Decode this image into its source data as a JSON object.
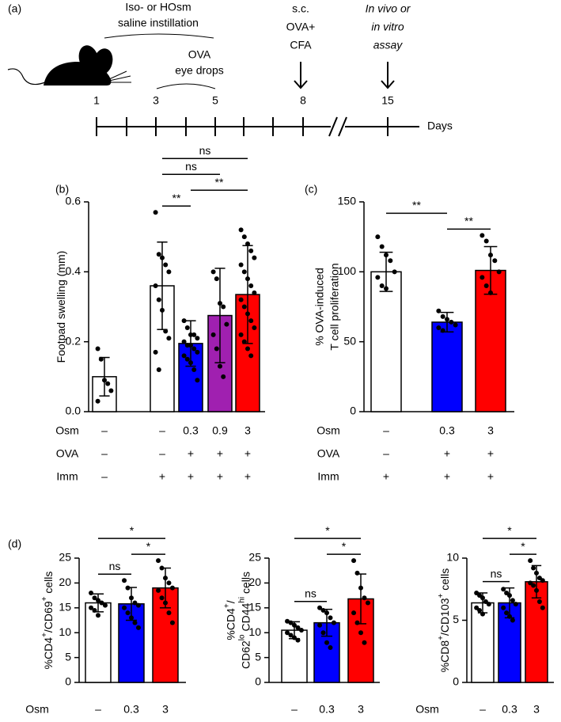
{
  "timeline": {
    "panel": "(a)",
    "top_note": [
      "Iso- or HOsm",
      "saline instillation"
    ],
    "eye_note": [
      "OVA",
      "eye drops"
    ],
    "immunization": [
      "s.c.",
      "OVA+",
      "CFA"
    ],
    "assay": [
      "In vivo or",
      "in vitro",
      "assay"
    ],
    "days": [
      1,
      3,
      5,
      8,
      15
    ],
    "axis_label": "Days"
  },
  "chart_data": [
    {
      "type": "bar",
      "panel": "(b)",
      "ylabel": [
        [
          {
            "t": "Footpad swelling (mm)"
          }
        ]
      ],
      "values": [
        0.1,
        0.36,
        0.195,
        0.275,
        0.335
      ],
      "errors": [
        0.055,
        0.125,
        0.065,
        0.135,
        0.14
      ],
      "colors": [
        "#ffffff",
        "#ffffff",
        "#0000ff",
        "#a020b0",
        "#ff0000"
      ],
      "points": [
        [
          0.18,
          0.15,
          0.09,
          0.08,
          0.06,
          0.03
        ],
        [
          0.57,
          0.45,
          0.44,
          0.42,
          0.4,
          0.36,
          0.32,
          0.29,
          0.23,
          0.21,
          0.17,
          0.12
        ],
        [
          0.26,
          0.24,
          0.22,
          0.22,
          0.21,
          0.2,
          0.19,
          0.19,
          0.18,
          0.17,
          0.16,
          0.15,
          0.14,
          0.12,
          0.09
        ],
        [
          0.4,
          0.38,
          0.31,
          0.3,
          0.25,
          0.22,
          0.18,
          0.13,
          0.1
        ],
        [
          0.52,
          0.5,
          0.48,
          0.46,
          0.44,
          0.42,
          0.4,
          0.38,
          0.36,
          0.34,
          0.32,
          0.3,
          0.28,
          0.26,
          0.24,
          0.22,
          0.2,
          0.18,
          0.16
        ]
      ],
      "ylim": [
        0,
        0.6
      ],
      "yticks": [
        {
          "value": 0,
          "label": "0.0"
        },
        0.2,
        0.4,
        0.6
      ],
      "comparisons": [
        {
          "label": "**",
          "bars": [
            1,
            2
          ]
        },
        {
          "label": "**",
          "bars": [
            2,
            4
          ]
        },
        {
          "label": "ns",
          "bars": [
            1,
            3
          ]
        },
        {
          "label": "ns",
          "bars": [
            1,
            4
          ]
        }
      ],
      "conditions": [
        {
          "name": "Osm",
          "values": [
            "–",
            "–",
            "0.3",
            "0.9",
            "3"
          ]
        },
        {
          "name": "OVA",
          "values": [
            "–",
            "–",
            "+",
            "+",
            "+"
          ]
        },
        {
          "name": "Imm",
          "values": [
            "–",
            "+",
            "+",
            "+",
            "+"
          ]
        }
      ]
    },
    {
      "type": "bar",
      "panel": "(c)",
      "ylabel": [
        [
          {
            "t": "% OVA-induced"
          }
        ],
        [
          {
            "t": "T cell proliferation"
          }
        ]
      ],
      "values": [
        100,
        64,
        101
      ],
      "errors": [
        14,
        7,
        17
      ],
      "colors": [
        "#ffffff",
        "#0000ff",
        "#ff0000"
      ],
      "points": [
        [
          125,
          118,
          112,
          108,
          100,
          96,
          90,
          88
        ],
        [
          72,
          68,
          66,
          64,
          62,
          60,
          58
        ],
        [
          126,
          122,
          112,
          108,
          100,
          96,
          90,
          85
        ]
      ],
      "ylim": [
        0,
        150
      ],
      "yticks": [
        0,
        50,
        100,
        150
      ],
      "comparisons": [
        {
          "label": "**",
          "bars": [
            1,
            2
          ]
        },
        {
          "label": "**",
          "bars": [
            0,
            1
          ]
        }
      ],
      "conditions": [
        {
          "name": "Osm",
          "values": [
            "–",
            "0.3",
            "3"
          ]
        },
        {
          "name": "OVA",
          "values": [
            "–",
            "+",
            "+"
          ]
        },
        {
          "name": "Imm",
          "values": [
            "+",
            "+",
            "+"
          ]
        }
      ]
    },
    {
      "type": "bar",
      "panel": "(d)",
      "ylabel": [
        [
          {
            "t": "%CD4"
          },
          {
            "sup": "+"
          },
          {
            "t": "/CD69"
          },
          {
            "sup": "+"
          },
          {
            "t": " cells"
          }
        ]
      ],
      "values": [
        16,
        15.8,
        19
      ],
      "errors": [
        1.8,
        3.3,
        4
      ],
      "colors": [
        "#ffffff",
        "#0000ff",
        "#ff0000"
      ],
      "points": [
        [
          18,
          17,
          16.5,
          16,
          15.5,
          15,
          14.5,
          13.5
        ],
        [
          20.5,
          19,
          17,
          16,
          15.5,
          15,
          14,
          13,
          12,
          11
        ],
        [
          24.5,
          23,
          21,
          20,
          19,
          18.5,
          17,
          16,
          14,
          12
        ]
      ],
      "ylim": [
        0,
        25
      ],
      "yticks": [
        0,
        5,
        10,
        15,
        20,
        25
      ],
      "comparisons": [
        {
          "label": "ns",
          "bars": [
            0,
            1
          ]
        },
        {
          "label": "*",
          "bars": [
            1,
            2
          ]
        },
        {
          "label": "*",
          "bars": [
            0,
            2
          ]
        }
      ],
      "conditions": [
        {
          "name": "Osm",
          "values": [
            "–",
            "0.3",
            "3"
          ]
        }
      ]
    },
    {
      "type": "bar",
      "ylabel": [
        [
          {
            "t": "%CD4"
          },
          {
            "sup": "+"
          },
          {
            "t": "/"
          }
        ],
        [
          {
            "t": "CD62"
          },
          {
            "sup": "lo"
          },
          {
            "t": " CD44"
          },
          {
            "sup": "hi"
          },
          {
            "t": " cells"
          }
        ]
      ],
      "values": [
        10.5,
        12,
        16.8
      ],
      "errors": [
        1.7,
        2.7,
        5
      ],
      "colors": [
        "#ffffff",
        "#0000ff",
        "#ff0000"
      ],
      "points": [
        [
          12.3,
          12,
          11.5,
          11,
          10.5,
          10,
          9.5,
          9,
          8.5
        ],
        [
          15,
          14.5,
          14,
          13,
          12,
          11.5,
          10,
          8,
          7
        ],
        [
          24.5,
          22,
          19,
          17,
          16,
          14,
          12,
          10,
          8
        ]
      ],
      "ylim": [
        0,
        25
      ],
      "yticks": [
        0,
        5,
        10,
        15,
        20,
        25
      ],
      "comparisons": [
        {
          "label": "ns",
          "bars": [
            0,
            1
          ]
        },
        {
          "label": "*",
          "bars": [
            1,
            2
          ]
        },
        {
          "label": "*",
          "bars": [
            0,
            2
          ]
        }
      ],
      "conditions": [
        {
          "values": [
            "–",
            "0.3",
            "3"
          ]
        }
      ]
    },
    {
      "type": "bar",
      "ylabel": [
        [
          {
            "t": "%CD8"
          },
          {
            "sup": "+"
          },
          {
            "t": "/CD103"
          },
          {
            "sup": "+"
          },
          {
            "t": " cells"
          }
        ]
      ],
      "values": [
        6.4,
        6.4,
        8.1
      ],
      "errors": [
        0.8,
        1.2,
        1.3
      ],
      "colors": [
        "#ffffff",
        "#0000ff",
        "#ff0000"
      ],
      "points": [
        [
          7.2,
          7,
          6.8,
          6.5,
          6.3,
          6,
          5.8,
          5.5
        ],
        [
          7.5,
          7.2,
          7,
          6.6,
          6.3,
          6,
          5.6,
          5.3,
          5
        ],
        [
          9.8,
          9.2,
          8.8,
          8.4,
          8.2,
          8,
          7.8,
          7.4,
          6.5,
          6
        ]
      ],
      "ylim": [
        0,
        10
      ],
      "yticks": [
        0,
        5,
        10
      ],
      "comparisons": [
        {
          "label": "ns",
          "bars": [
            0,
            1
          ]
        },
        {
          "label": "*",
          "bars": [
            1,
            2
          ]
        },
        {
          "label": "*",
          "bars": [
            0,
            2
          ]
        }
      ],
      "conditions": [
        {
          "name": "Osm",
          "values": [
            "–",
            "0.3",
            "3"
          ]
        }
      ]
    }
  ]
}
